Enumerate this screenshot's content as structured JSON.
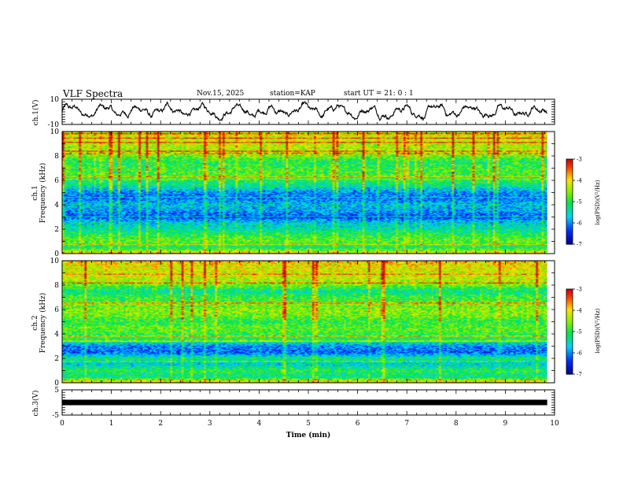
{
  "header": {
    "title": "VLF Spectra",
    "date": "Nov.15, 2025",
    "station": "station=KAP",
    "start_ut": "start UT =   21: 0  : 1"
  },
  "chart_data": [
    {
      "type": "line",
      "name": "ch1-waveform",
      "ylabel": "ch.1(V)",
      "ylim": [
        -10,
        10
      ],
      "yticks": [
        "10",
        "-10"
      ],
      "xlim": [
        0,
        10
      ],
      "x_end": 9.85,
      "color": "#000000",
      "description_values": {
        "mean": 0.5,
        "amplitude_range": [
          -7,
          8
        ]
      }
    },
    {
      "type": "heatmap",
      "name": "ch1-spectrogram",
      "ylabel_line1": "ch.1",
      "ylabel_line2": "Frequency (kHz)",
      "ylim": [
        0,
        10
      ],
      "yticks": [
        "0",
        "2",
        "4",
        "6",
        "8",
        "10"
      ],
      "xlim": [
        0,
        10
      ],
      "x_end": 9.85,
      "levels_by_khz": [
        -3.9,
        -5.2,
        -4.7,
        -5.0,
        -5.4,
        -5.6,
        -6.3,
        -5.9,
        -5.7,
        -6.1,
        -6.0,
        -5.4,
        -5.0,
        -4.8,
        -4.9,
        -5.1,
        -4.6,
        -4.4,
        -4.3,
        -4.2,
        -4.1
      ],
      "colorbar": {
        "label": "log(PSD)(V²/Hz)",
        "min": -7,
        "max": -3,
        "ticks": [
          "-3",
          "-4",
          "-5",
          "-6",
          "-7"
        ]
      }
    },
    {
      "type": "heatmap",
      "name": "ch2-spectrogram",
      "ylabel_line1": "ch.2",
      "ylabel_line2": "Frequency (kHz)",
      "ylim": [
        0,
        10
      ],
      "yticks": [
        "0",
        "2",
        "4",
        "6",
        "8",
        "10"
      ],
      "xlim": [
        0,
        10
      ],
      "x_end": 9.85,
      "levels_by_khz": [
        -4.0,
        -5.3,
        -5.0,
        -5.6,
        -5.2,
        -6.2,
        -6.0,
        -5.1,
        -4.9,
        -4.7,
        -5.0,
        -4.6,
        -4.5,
        -4.8,
        -4.9,
        -5.3,
        -4.6,
        -4.3,
        -4.2,
        -4.1,
        -3.9
      ],
      "colorbar": {
        "label": "log(PSD)(V²/Hz)",
        "min": -7,
        "max": -3,
        "ticks": [
          "-3",
          "-4",
          "-5",
          "-6",
          "-7"
        ]
      }
    },
    {
      "type": "line",
      "name": "ch3-trace",
      "ylabel": "ch.3(V)",
      "ylim": [
        -5,
        5
      ],
      "yticks": [
        "5",
        "-5"
      ],
      "xlim": [
        0,
        10
      ],
      "x_end": 9.85,
      "value": 0,
      "color": "#000000"
    }
  ],
  "x_axis": {
    "label": "Time (min)",
    "ticks": [
      "0",
      "1",
      "2",
      "3",
      "4",
      "5",
      "6",
      "7",
      "8",
      "9",
      "10"
    ]
  }
}
